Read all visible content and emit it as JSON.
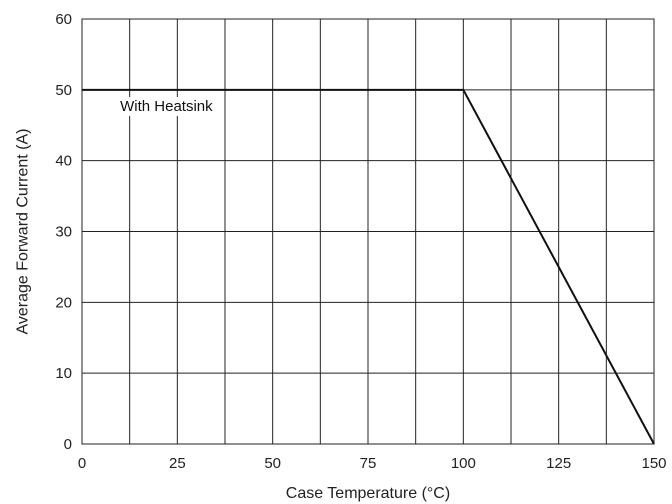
{
  "chart_data": {
    "type": "line",
    "title": "",
    "xlabel": "Case Temperature (°C)",
    "ylabel": "Average Forward Current (A)",
    "xlim": [
      0,
      150
    ],
    "ylim": [
      0,
      60
    ],
    "x_ticks": [
      0,
      25,
      50,
      75,
      100,
      125,
      150
    ],
    "y_ticks": [
      0,
      10,
      20,
      30,
      40,
      50,
      60
    ],
    "grid": true,
    "series": [
      {
        "x": [
          0,
          100,
          150
        ],
        "y": [
          50,
          50,
          0
        ]
      }
    ],
    "annotations": [
      {
        "text": "With Heatsink",
        "x": 10,
        "y": 47
      }
    ],
    "line_color": "#111111",
    "grid_color": "#222222"
  }
}
